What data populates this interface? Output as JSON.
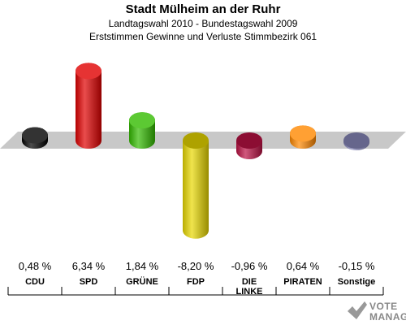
{
  "header": {
    "title": "Stadt Mülheim an der Ruhr",
    "subtitle1": "Landtagswahl 2010 - Bundestagswahl 2009",
    "subtitle2": "Erststimmen Gewinne und Verluste Stimmbezirk 061"
  },
  "chart_data": {
    "type": "bar",
    "categories": [
      "CDU",
      "SPD",
      "GRÜNE",
      "FDP",
      "DIE LINKE",
      "PIRATEN",
      "Sonstige"
    ],
    "category_lines": [
      [
        "CDU"
      ],
      [
        "SPD"
      ],
      [
        "GRÜNE"
      ],
      [
        "FDP"
      ],
      [
        "DIE",
        "LINKE"
      ],
      [
        "PIRATEN"
      ],
      [
        "Sonstige"
      ]
    ],
    "values": [
      0.48,
      6.34,
      1.84,
      -8.2,
      -0.96,
      0.64,
      -0.15
    ],
    "value_labels": [
      "0,48 %",
      "6,34 %",
      "1,84 %",
      "-8,20 %",
      "-0,96 %",
      "0,64 %",
      "-0,15 %"
    ],
    "colors": [
      "#000000",
      "#e00000",
      "#33bb00",
      "#e8d800",
      "#bb1144",
      "#ff8800",
      "#8888bb"
    ],
    "ylim": [
      -8.2,
      6.34
    ],
    "grid": false,
    "legend": "none"
  },
  "logo": {
    "line1": "VOTE",
    "line2": "MANAGER"
  }
}
